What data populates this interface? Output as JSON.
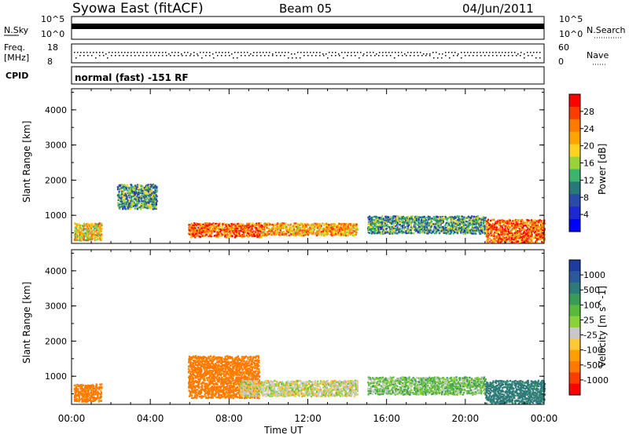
{
  "header": {
    "title": "Syowa East (fitACF)",
    "beam": "Beam 05",
    "date": "04/Jun/2011"
  },
  "top_panels": {
    "nsky_label": "N.Sky",
    "nsky_ticks": [
      "10^5",
      "10^0"
    ],
    "nsearch_label": "N.Search",
    "nsearch_ticks": [
      "10^5",
      "10^0"
    ],
    "freq_label_1": "Freq.",
    "freq_label_2": "[MHz]",
    "freq_ticks": [
      "18",
      "8"
    ],
    "nave_label": "Nave",
    "nave_ticks": [
      "60",
      "0"
    ],
    "cpid_label": "CPID",
    "cpid_value": "normal (fast) -151 RF"
  },
  "power_colorbar": {
    "title": "Power [dB]",
    "labels": [
      "28",
      "24",
      "20",
      "16",
      "12",
      "8",
      "4"
    ],
    "colors": [
      "#ff0000",
      "#ff3c00",
      "#ff7a00",
      "#ffa500",
      "#ffd21e",
      "#9bd23c",
      "#3cb46e",
      "#28787a",
      "#284ba5",
      "#1e28d2",
      "#0000ff"
    ]
  },
  "velocity_colorbar": {
    "title": "Velocity [m s^-1]",
    "labels": [
      "1000",
      "500",
      "100",
      "25",
      "-25",
      "-100",
      "-500",
      "-1000"
    ],
    "colors": [
      "#1e3ca0",
      "#2a5a9a",
      "#2e7a7a",
      "#3a9a5a",
      "#5ab83c",
      "#8ad23c",
      "#c8c8c8",
      "#ffc837",
      "#ffa000",
      "#ff7800",
      "#ff3c00",
      "#ff0000"
    ]
  },
  "chart_data": [
    {
      "type": "heatmap",
      "title": "Power",
      "ylabel": "Slant Range [km]",
      "yticks": [
        "4000",
        "3000",
        "2000",
        "1000"
      ],
      "ylim": [
        200,
        4600
      ],
      "xlim": [
        0,
        24
      ],
      "xticks": [
        "00:00",
        "04:00",
        "08:00",
        "12:00",
        "16:00",
        "20:00",
        "00:00"
      ],
      "features": [
        {
          "x0": 0.1,
          "x1": 1.5,
          "y0": 300,
          "y1": 800,
          "value": 20
        },
        {
          "x0": 2.3,
          "x1": 4.3,
          "y0": 1200,
          "y1": 1900,
          "value": 12
        },
        {
          "x0": 5.9,
          "x1": 9.7,
          "y0": 400,
          "y1": 800,
          "value": 26
        },
        {
          "x0": 9.7,
          "x1": 14.5,
          "y0": 450,
          "y1": 800,
          "value": 22
        },
        {
          "x0": 15.0,
          "x1": 21.0,
          "y0": 500,
          "y1": 1000,
          "value": 12
        },
        {
          "x0": 21.0,
          "x1": 24.0,
          "y0": 250,
          "y1": 900,
          "value": 26
        }
      ]
    },
    {
      "type": "heatmap",
      "title": "Velocity",
      "ylabel": "Slant Range [km]",
      "xlabel": "Time UT",
      "yticks": [
        "4000",
        "3000",
        "2000",
        "1000"
      ],
      "ylim": [
        200,
        4600
      ],
      "xlim": [
        0,
        24
      ],
      "xticks": [
        "00:00",
        "04:00",
        "08:00",
        "12:00",
        "16:00",
        "20:00",
        "00:00"
      ],
      "features": [
        {
          "x0": 0.1,
          "x1": 1.5,
          "y0": 300,
          "y1": 800,
          "value": -150
        },
        {
          "x0": 5.9,
          "x1": 9.5,
          "y0": 400,
          "y1": 1600,
          "value": -150
        },
        {
          "x0": 8.5,
          "x1": 14.5,
          "y0": 450,
          "y1": 900,
          "value": 0
        },
        {
          "x0": 15.0,
          "x1": 21.0,
          "y0": 500,
          "y1": 1000,
          "value": 60
        },
        {
          "x0": 21.0,
          "x1": 24.0,
          "y0": 250,
          "y1": 900,
          "value": 300
        }
      ]
    }
  ]
}
